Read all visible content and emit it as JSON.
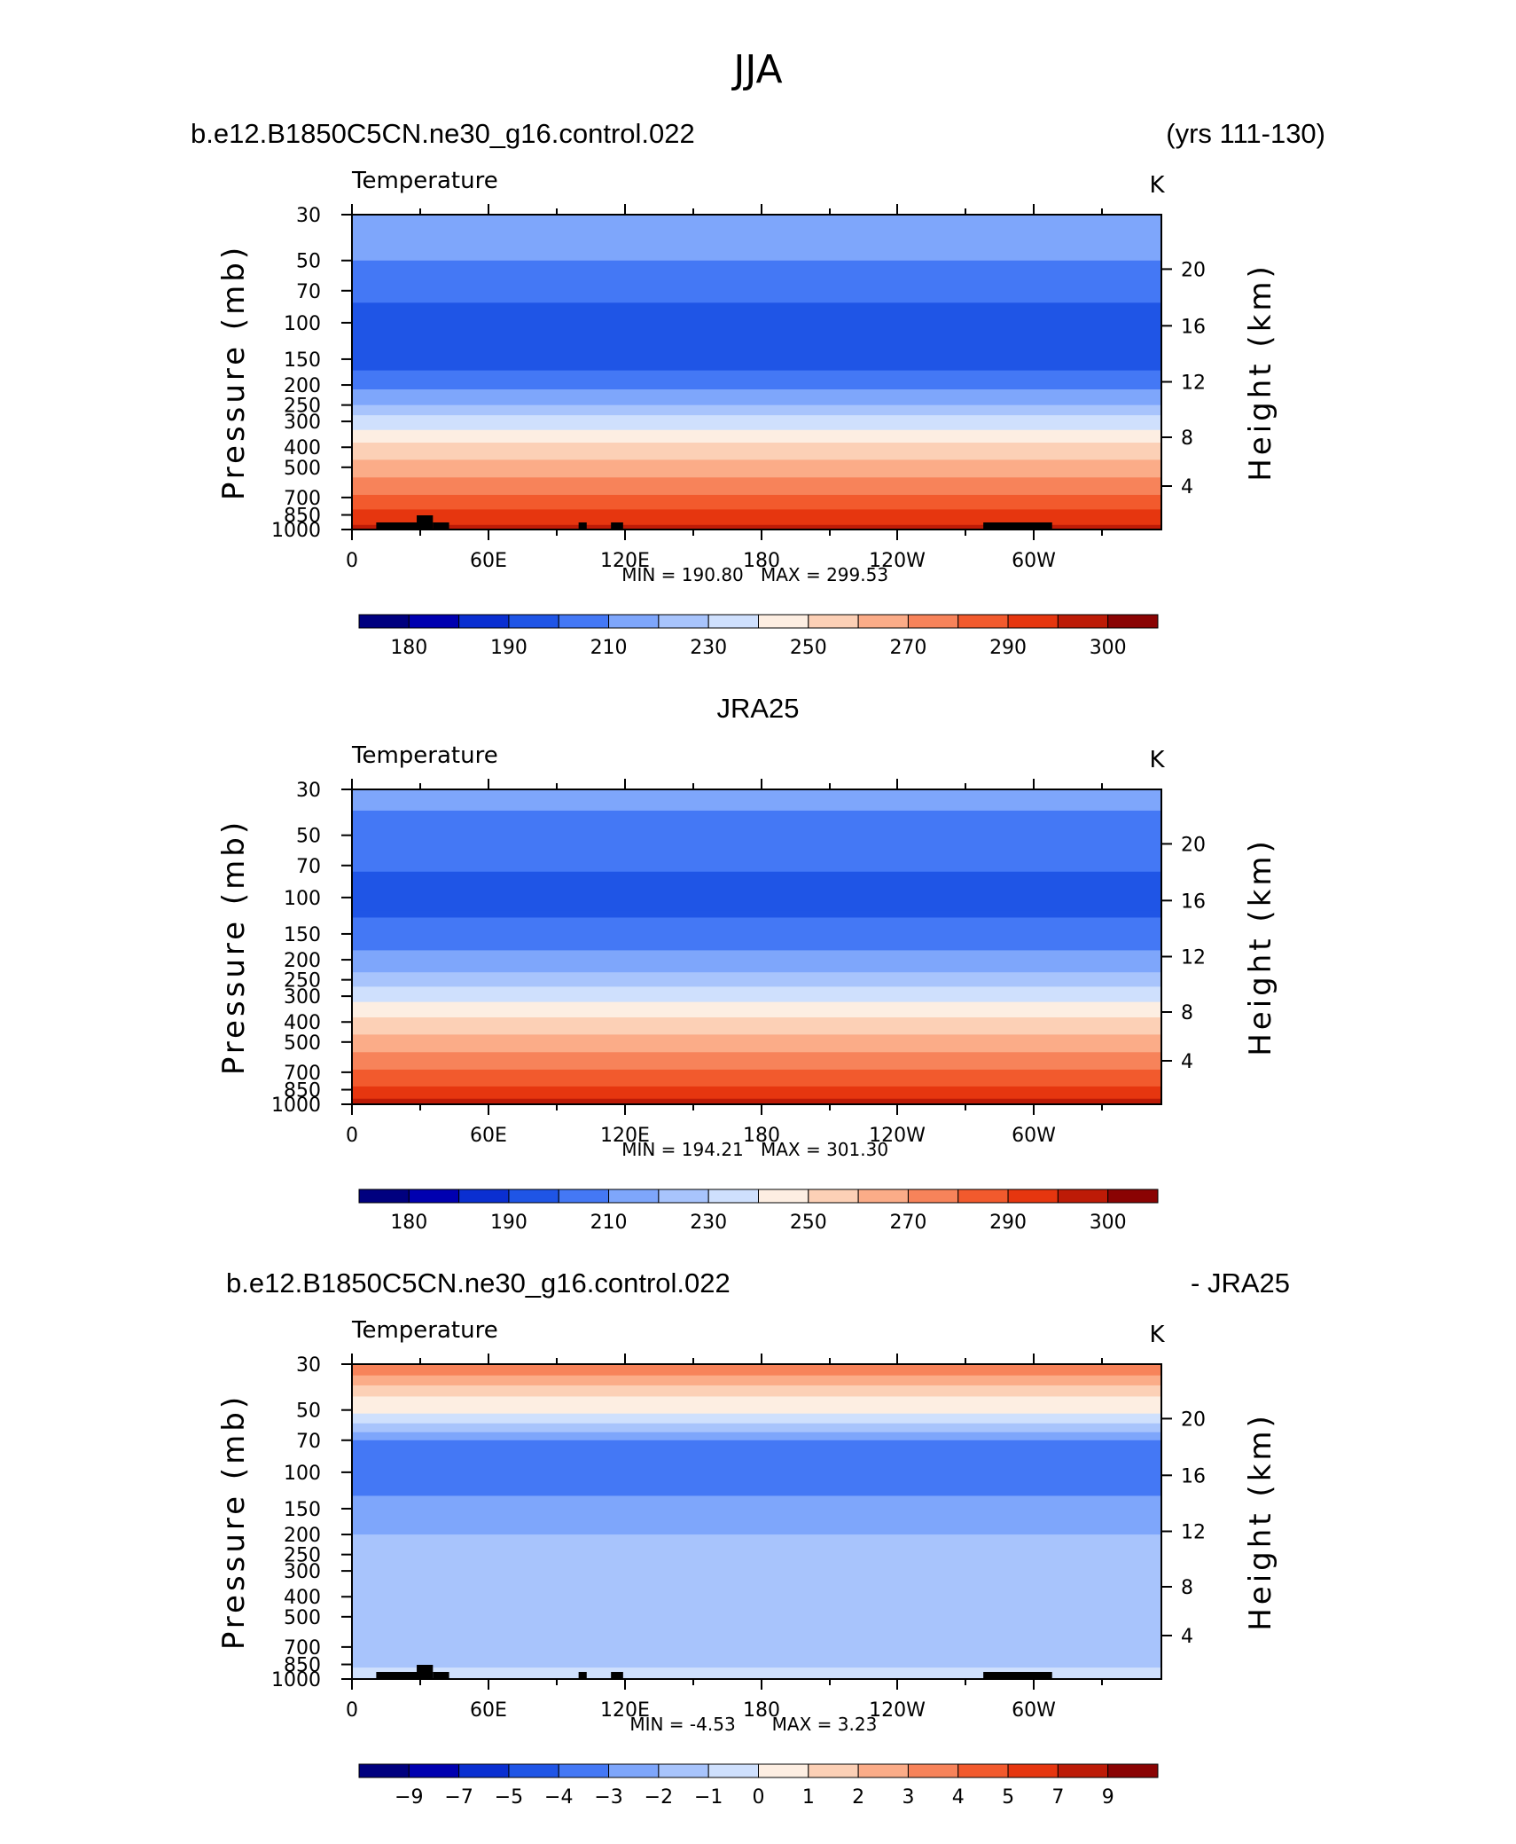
{
  "title": "JJA",
  "colors": {
    "temp_levels": [
      "#00007f",
      "#0000b0",
      "#0a2fd1",
      "#1f55e6",
      "#4478f5",
      "#7ea6fb",
      "#a8c4fc",
      "#cfe0fd",
      "#fdeee2",
      "#fcd0b6",
      "#fbac88",
      "#f7835a",
      "#f25a2d",
      "#e6360f",
      "#bd1b07",
      "#8a0303"
    ],
    "terrain": "#000000",
    "frame": "#000000"
  },
  "chart_data": [
    {
      "type": "heatmap",
      "name": "model",
      "case_label": "b.e12.B1850C5CN.ne30_g16.control.022",
      "right_label": "(yrs 111-130)",
      "variable": "Temperature",
      "units": "K",
      "ylabel": "Pressure (mb)",
      "y2label": "Height (km)",
      "x_ticks": [
        "0",
        "60E",
        "120E",
        "180",
        "120W",
        "60W"
      ],
      "y_ticks": [
        "30",
        "50",
        "70",
        "100",
        "150",
        "200",
        "250",
        "300",
        "400",
        "500",
        "700",
        "850",
        "1000"
      ],
      "y2_ticks": [
        "20",
        "16",
        "12",
        "8",
        "4"
      ],
      "min_label": "MIN = 190.80",
      "max_label": "MAX = 299.53",
      "min": 190.8,
      "max": 299.53,
      "colorbar_labels": [
        "180",
        "190",
        "210",
        "230",
        "250",
        "270",
        "290",
        "300"
      ],
      "profile": [
        {
          "p": 30,
          "level": 5
        },
        {
          "p": 40,
          "level": 5
        },
        {
          "p": 50,
          "level": 4
        },
        {
          "p": 70,
          "level": 4
        },
        {
          "p": 80,
          "level": 3
        },
        {
          "p": 100,
          "level": 3
        },
        {
          "p": 140,
          "level": 3
        },
        {
          "p": 170,
          "level": 4
        },
        {
          "p": 210,
          "level": 5
        },
        {
          "p": 250,
          "level": 6
        },
        {
          "p": 280,
          "level": 7
        },
        {
          "p": 330,
          "level": 8
        },
        {
          "p": 380,
          "level": 9
        },
        {
          "p": 460,
          "level": 10
        },
        {
          "p": 560,
          "level": 11
        },
        {
          "p": 680,
          "level": 12
        },
        {
          "p": 800,
          "level": 13
        },
        {
          "p": 950,
          "level": 14
        }
      ]
    },
    {
      "type": "heatmap",
      "name": "obs",
      "center_label": "JRA25",
      "variable": "Temperature",
      "units": "K",
      "ylabel": "Pressure (mb)",
      "y2label": "Height (km)",
      "x_ticks": [
        "0",
        "60E",
        "120E",
        "180",
        "120W",
        "60W"
      ],
      "y_ticks": [
        "30",
        "50",
        "70",
        "100",
        "150",
        "200",
        "250",
        "300",
        "400",
        "500",
        "700",
        "850",
        "1000"
      ],
      "y2_ticks": [
        "20",
        "16",
        "12",
        "8",
        "4"
      ],
      "min_label": "MIN = 194.21",
      "max_label": "MAX = 301.30",
      "min": 194.21,
      "max": 301.3,
      "colorbar_labels": [
        "180",
        "190",
        "210",
        "230",
        "250",
        "270",
        "290",
        "300"
      ],
      "profile": [
        {
          "p": 30,
          "level": 5
        },
        {
          "p": 38,
          "level": 4
        },
        {
          "p": 75,
          "level": 3
        },
        {
          "p": 115,
          "level": 3
        },
        {
          "p": 125,
          "level": 4
        },
        {
          "p": 180,
          "level": 5
        },
        {
          "p": 230,
          "level": 6
        },
        {
          "p": 270,
          "level": 7
        },
        {
          "p": 320,
          "level": 8
        },
        {
          "p": 380,
          "level": 9
        },
        {
          "p": 460,
          "level": 10
        },
        {
          "p": 560,
          "level": 11
        },
        {
          "p": 680,
          "level": 12
        },
        {
          "p": 820,
          "level": 13
        },
        {
          "p": 940,
          "level": 14
        }
      ]
    },
    {
      "type": "heatmap",
      "name": "difference",
      "case_label": "b.e12.B1850C5CN.ne30_g16.control.022",
      "right_label": "- JRA25",
      "variable": "Temperature",
      "units": "K",
      "ylabel": "Pressure (mb)",
      "y2label": "Height (km)",
      "x_ticks": [
        "0",
        "60E",
        "120E",
        "180",
        "120W",
        "60W"
      ],
      "y_ticks": [
        "30",
        "50",
        "70",
        "100",
        "150",
        "200",
        "250",
        "300",
        "400",
        "500",
        "700",
        "850",
        "1000"
      ],
      "y2_ticks": [
        "20",
        "16",
        "12",
        "8",
        "4"
      ],
      "min_label": "MIN = -4.53",
      "max_label": "MAX = 3.23",
      "min": -4.53,
      "max": 3.23,
      "colorbar_labels": [
        "−9",
        "−7",
        "−5",
        "−4",
        "−3",
        "−2",
        "−1",
        "0",
        "1",
        "2",
        "3",
        "4",
        "5",
        "7",
        "9"
      ],
      "profile": [
        {
          "p": 30,
          "level": 11
        },
        {
          "p": 34,
          "level": 10
        },
        {
          "p": 38,
          "level": 9
        },
        {
          "p": 43,
          "level": 8
        },
        {
          "p": 52,
          "level": 7
        },
        {
          "p": 58,
          "level": 6
        },
        {
          "p": 64,
          "level": 5
        },
        {
          "p": 70,
          "level": 4
        },
        {
          "p": 130,
          "level": 5
        },
        {
          "p": 200,
          "level": 6
        },
        {
          "p": 880,
          "level": 7
        }
      ]
    }
  ]
}
